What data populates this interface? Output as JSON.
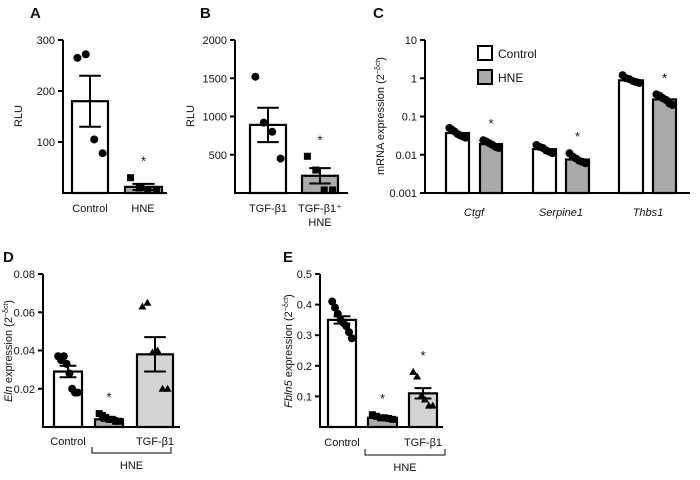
{
  "chart_data": [
    {
      "panel": "A",
      "type": "bar",
      "scale": "linear",
      "ylim": [
        0,
        300
      ],
      "yticks": [
        {
          "v": 100,
          "label": "100"
        },
        {
          "v": 200,
          "label": "200"
        },
        {
          "v": 300,
          "label": "300"
        }
      ],
      "ylabel": [
        {
          "text": "RLU",
          "style": "normal"
        }
      ],
      "xticklabels": [
        {
          "text": "Control",
          "italic": false
        },
        {
          "text": "HNE",
          "italic": false
        }
      ],
      "bars": [
        {
          "value": 180,
          "sem": 50,
          "fill": "#ffffff",
          "marker": "circle",
          "points": [
            265,
            272,
            105,
            78
          ],
          "star": false
        },
        {
          "value": 12,
          "sem": 6,
          "fill": "#aaaaaa",
          "marker": "square",
          "points": [
            30,
            10,
            0,
            0
          ],
          "star": true
        }
      ],
      "star_label": "*"
    },
    {
      "panel": "B",
      "type": "bar",
      "scale": "linear",
      "ylim": [
        0,
        2000
      ],
      "yticks": [
        {
          "v": 500,
          "label": "500"
        },
        {
          "v": 1000,
          "label": "1000"
        },
        {
          "v": 1500,
          "label": "1500"
        },
        {
          "v": 2000,
          "label": "2000"
        }
      ],
      "ylabel": [
        {
          "text": "RLU",
          "style": "normal"
        }
      ],
      "xticklabels": [
        {
          "text": "TGF-β1",
          "italic": false
        },
        {
          "text": "TGF-β1⁺",
          "italic": false,
          "line2": "HNE"
        }
      ],
      "bars": [
        {
          "value": 890,
          "sem": 225,
          "fill": "#ffffff",
          "marker": "circle",
          "points": [
            1520,
            920,
            800,
            450
          ],
          "star": false
        },
        {
          "value": 225,
          "sem": 100,
          "fill": "#aaaaaa",
          "marker": "square",
          "points": [
            480,
            300,
            0,
            0
          ],
          "star": true
        }
      ],
      "star_label": "*"
    },
    {
      "panel": "C",
      "type": "bar",
      "scale": "log",
      "ylim": [
        0.001,
        10
      ],
      "yticks": [
        {
          "v": 0.001,
          "label": "0.001"
        },
        {
          "v": 0.01,
          "label": "0.01"
        },
        {
          "v": 0.1,
          "label": "0.1"
        },
        {
          "v": 1,
          "label": "1"
        },
        {
          "v": 10,
          "label": "10"
        }
      ],
      "ylabel": [
        {
          "text": "mRNA expression (2",
          "style": "normal"
        },
        {
          "text": "−δct",
          "style": "sup"
        },
        {
          "text": ")",
          "style": "normal"
        }
      ],
      "legend": {
        "position": "top-left",
        "entries": [
          {
            "name": "Control",
            "fill": "#ffffff"
          },
          {
            "name": "HNE",
            "fill": "#aaaaaa"
          }
        ]
      },
      "xticklabels": [
        {
          "text": "Ctgf",
          "italic": true
        },
        {
          "text": "Serpine1",
          "italic": true
        },
        {
          "text": "Thbs1",
          "italic": true
        }
      ],
      "bars": [
        {
          "series": "Control",
          "category": "Ctgf",
          "value": 0.037,
          "fill": "#ffffff",
          "marker": "circle",
          "points": [
            0.05,
            0.045,
            0.04,
            0.035,
            0.032,
            0.03,
            0.028
          ],
          "star": false
        },
        {
          "series": "HNE",
          "category": "Ctgf",
          "value": 0.019,
          "fill": "#aaaaaa",
          "marker": "circle",
          "points": [
            0.024,
            0.022,
            0.02,
            0.018,
            0.016,
            0.015
          ],
          "star": true
        },
        {
          "series": "Control",
          "category": "Serpine1",
          "value": 0.014,
          "fill": "#ffffff",
          "marker": "circle",
          "points": [
            0.018,
            0.016,
            0.015,
            0.013,
            0.012,
            0.011
          ],
          "star": false
        },
        {
          "series": "HNE",
          "category": "Serpine1",
          "value": 0.0075,
          "fill": "#aaaaaa",
          "marker": "circle",
          "points": [
            0.011,
            0.009,
            0.008,
            0.007,
            0.0065,
            0.006
          ],
          "star": true
        },
        {
          "series": "Control",
          "category": "Thbs1",
          "value": 0.88,
          "fill": "#ffffff",
          "marker": "circle",
          "points": [
            1.2,
            1.0,
            0.95,
            0.85,
            0.8,
            0.75
          ],
          "star": false
        },
        {
          "series": "HNE",
          "category": "Thbs1",
          "value": 0.28,
          "fill": "#aaaaaa",
          "marker": "circle",
          "points": [
            0.38,
            0.35,
            0.3,
            0.27,
            0.22,
            0.2
          ],
          "star": true
        }
      ],
      "star_label": "*"
    },
    {
      "panel": "D",
      "type": "bar",
      "scale": "linear",
      "ylim": [
        0,
        0.08
      ],
      "yticks": [
        {
          "v": 0.02,
          "label": "0.02"
        },
        {
          "v": 0.04,
          "label": "0.04"
        },
        {
          "v": 0.06,
          "label": "0.06"
        },
        {
          "v": 0.08,
          "label": "0.08"
        }
      ],
      "ylabel": [
        {
          "text": "Eln",
          "style": "italic"
        },
        {
          "text": " expression (2",
          "style": "normal"
        },
        {
          "text": "−δct",
          "style": "sup"
        },
        {
          "text": ")",
          "style": "normal"
        }
      ],
      "xticklabels": [
        {
          "text": "Control",
          "italic": false
        },
        {
          "text": "",
          "italic": false
        },
        {
          "text": "TGF-β1",
          "italic": false
        }
      ],
      "bracket": {
        "label": "HNE",
        "from": 1,
        "to": 2
      },
      "bars": [
        {
          "value": 0.029,
          "sem": 0.003,
          "fill": "#ffffff",
          "marker": "circle",
          "points": [
            0.037,
            0.035,
            0.037,
            0.033,
            0.028,
            0.02,
            0.018,
            0.018
          ],
          "star": false
        },
        {
          "value": 0.004,
          "sem": 0.0007,
          "fill": "#aaaaaa",
          "marker": "square",
          "points": [
            0.007,
            0.006,
            0.005,
            0.004,
            0.004,
            0.003,
            0.003
          ],
          "star": true
        },
        {
          "value": 0.038,
          "sem": 0.009,
          "fill": "#d4d4d4",
          "marker": "triangle",
          "points": [
            0.063,
            0.065,
            0.039,
            0.04,
            0.02,
            0.02
          ],
          "star": false
        }
      ],
      "star_label": "*"
    },
    {
      "panel": "E",
      "type": "bar",
      "scale": "linear",
      "ylim": [
        0,
        0.5
      ],
      "yticks": [
        {
          "v": 0.1,
          "label": "0.1"
        },
        {
          "v": 0.2,
          "label": "0.2"
        },
        {
          "v": 0.3,
          "label": "0.3"
        },
        {
          "v": 0.4,
          "label": "0.4"
        },
        {
          "v": 0.5,
          "label": "0.5"
        }
      ],
      "ylabel": [
        {
          "text": "Fbln5",
          "style": "italic"
        },
        {
          "text": " expression (2",
          "style": "normal"
        },
        {
          "text": "−δct",
          "style": "sup"
        },
        {
          "text": ")",
          "style": "normal"
        }
      ],
      "xticklabels": [
        {
          "text": "Control",
          "italic": false
        },
        {
          "text": "",
          "italic": false
        },
        {
          "text": "TGF-β1",
          "italic": false
        }
      ],
      "bracket": {
        "label": "HNE",
        "from": 1,
        "to": 2
      },
      "bars": [
        {
          "value": 0.35,
          "sem": 0.012,
          "fill": "#ffffff",
          "marker": "circle",
          "points": [
            0.41,
            0.39,
            0.37,
            0.35,
            0.34,
            0.33,
            0.31,
            0.29
          ],
          "star": false
        },
        {
          "value": 0.03,
          "sem": 0.003,
          "fill": "#aaaaaa",
          "marker": "square",
          "points": [
            0.04,
            0.035,
            0.03,
            0.03,
            0.028,
            0.025
          ],
          "star": true
        },
        {
          "value": 0.11,
          "sem": 0.017,
          "fill": "#d4d4d4",
          "marker": "triangle",
          "points": [
            0.18,
            0.165,
            0.1,
            0.09,
            0.07,
            0.07
          ],
          "star": true
        }
      ],
      "star_label": "*"
    }
  ]
}
